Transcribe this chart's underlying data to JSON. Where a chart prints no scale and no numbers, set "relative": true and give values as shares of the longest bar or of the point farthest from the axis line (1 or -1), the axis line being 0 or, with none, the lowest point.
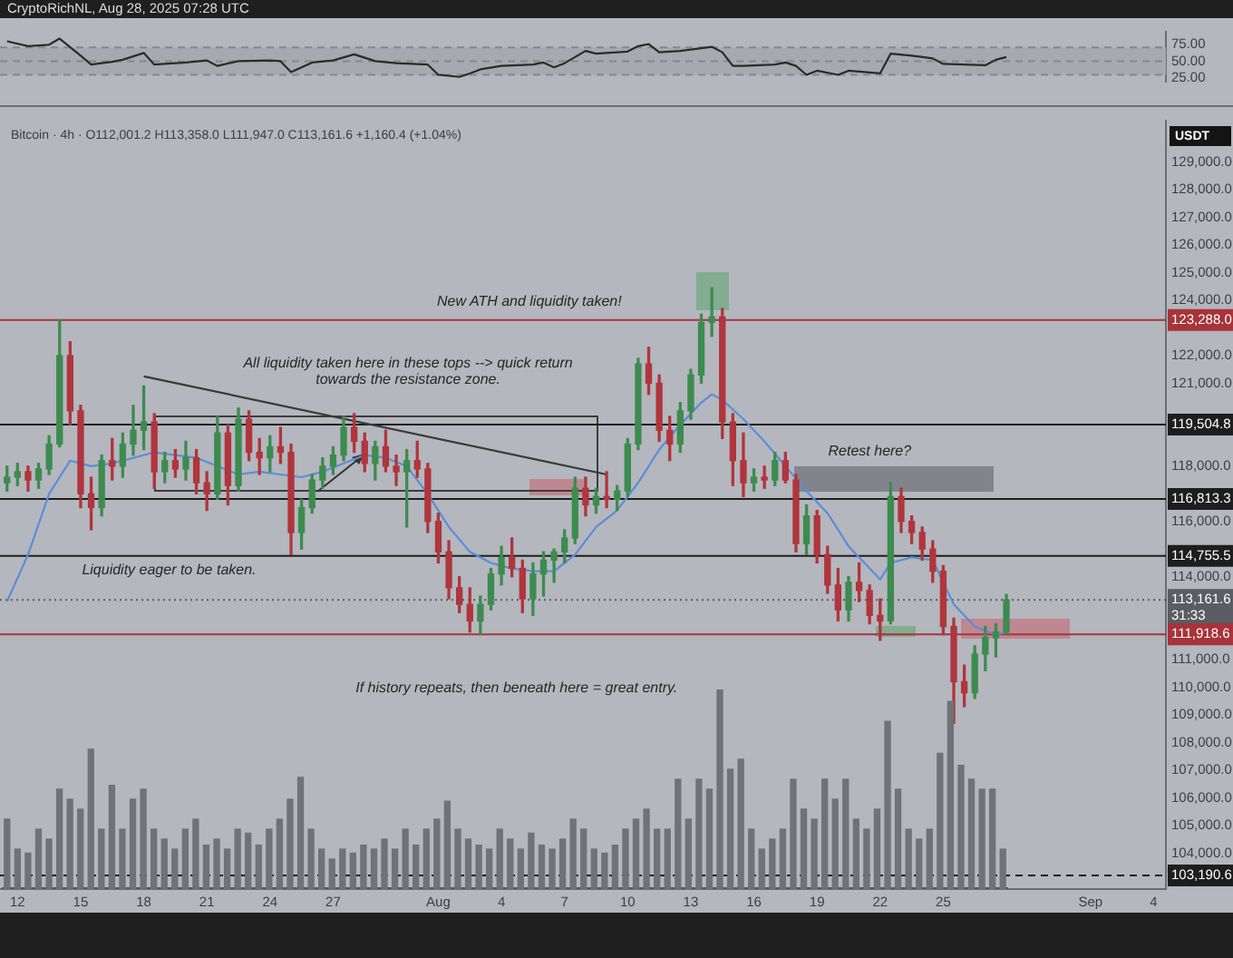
{
  "chart_data": [
    {
      "type": "line",
      "title": "CryptoRichNL, Aug 28, 2025 07:28 UTC",
      "x": [
        "2025-07-11T12:00",
        "2025-07-12T12:00",
        "2025-07-13T12:00",
        "2025-07-14T00:00",
        "2025-07-15T00:00",
        "2025-07-15T12:00",
        "2025-07-16T00:00",
        "2025-07-16T12:00",
        "2025-07-17T00:00",
        "2025-07-18T00:00",
        "2025-07-18T12:00",
        "2025-07-20T00:00",
        "2025-07-21T00:00",
        "2025-07-21T12:00",
        "2025-07-22T12:00",
        "2025-07-24T00:00",
        "2025-07-24T12:00",
        "2025-07-25T00:00",
        "2025-07-26T00:00",
        "2025-07-27T00:00",
        "2025-07-28T00:00",
        "2025-07-29T00:00",
        "2025-07-30T00:00",
        "2025-07-31T12:00",
        "2025-08-01T00:00",
        "2025-08-02T00:00",
        "2025-08-02T12:00",
        "2025-08-03T00:00",
        "2025-08-04T00:00",
        "2025-08-05T12:00",
        "2025-08-06T00:00",
        "2025-08-06T12:00",
        "2025-08-07T00:00",
        "2025-08-08T00:00",
        "2025-08-08T12:00",
        "2025-08-10T00:00",
        "2025-08-10T12:00",
        "2025-08-11T00:00",
        "2025-08-11T12:00",
        "2025-08-12T12:00",
        "2025-08-13T00:00",
        "2025-08-14T00:00",
        "2025-08-14T12:00",
        "2025-08-15T00:00",
        "2025-08-15T12:00",
        "2025-08-17T00:00",
        "2025-08-17T12:00",
        "2025-08-18T00:00",
        "2025-08-18T12:00",
        "2025-08-19T00:00",
        "2025-08-20T00:00",
        "2025-08-20T12:00",
        "2025-08-22T00:00",
        "2025-08-22T12:00",
        "2025-08-23T12:00",
        "2025-08-24T12:00",
        "2025-08-25T00:00",
        "2025-08-26T00:00",
        "2025-08-27T00:00",
        "2025-08-27T12:00",
        "2025-08-28T00:00"
      ],
      "values": [
        79,
        72,
        74,
        83,
        58,
        45,
        47,
        49,
        52,
        62,
        45,
        48,
        51,
        43,
        50,
        51,
        50,
        34,
        48,
        51,
        60,
        50,
        47,
        45,
        30,
        27,
        32,
        38,
        43,
        45,
        48,
        41,
        47,
        65,
        61,
        64,
        72,
        75,
        63,
        65,
        67,
        71,
        63,
        43,
        43,
        45,
        48,
        43,
        30,
        36,
        30,
        36,
        32,
        61,
        58,
        54,
        46,
        45,
        44,
        52,
        56
      ],
      "color": "#2b2b2b",
      "xlim": [
        "2025-07-11T04:00",
        "2025-09-04T14:00"
      ],
      "ylim": [
        20,
        93
      ],
      "yticks": [
        {
          "value": 25,
          "label": "25.00"
        },
        {
          "value": 50,
          "label": "50.00"
        },
        {
          "value": 75,
          "label": "75.00"
        }
      ],
      "tick_labels": "y",
      "bands": [
        {
          "axis": "y",
          "from": 30,
          "to": 70,
          "color": "#a6a9b0"
        }
      ],
      "ref_lines": [
        {
          "axis": "y",
          "value": 70,
          "line_style": "dashed",
          "color": "#85888f"
        },
        {
          "axis": "y",
          "value": 50,
          "line_style": "dashed",
          "color": "#85888f"
        },
        {
          "axis": "y",
          "value": 30,
          "line_style": "dashed",
          "color": "#85888f"
        }
      ]
    },
    {
      "type": "candlestick",
      "subtitle": "Bitcoin · 4h · O112,001.2 H113,358.0 L111,947.0 C113,161.6 +1,160.4 (+1.04%)",
      "ylabel": "USDT",
      "x": [
        "2025-07-11T12:00",
        "2025-07-12T00:00",
        "2025-07-12T12:00",
        "2025-07-13T00:00",
        "2025-07-13T12:00",
        "2025-07-14T00:00",
        "2025-07-14T12:00",
        "2025-07-15T00:00",
        "2025-07-15T12:00",
        "2025-07-16T00:00",
        "2025-07-16T12:00",
        "2025-07-17T00:00",
        "2025-07-17T12:00",
        "2025-07-18T00:00",
        "2025-07-18T12:00",
        "2025-07-19T00:00",
        "2025-07-19T12:00",
        "2025-07-20T00:00",
        "2025-07-20T12:00",
        "2025-07-21T00:00",
        "2025-07-21T12:00",
        "2025-07-22T00:00",
        "2025-07-22T12:00",
        "2025-07-23T00:00",
        "2025-07-23T12:00",
        "2025-07-24T00:00",
        "2025-07-24T12:00",
        "2025-07-25T00:00",
        "2025-07-25T12:00",
        "2025-07-26T00:00",
        "2025-07-26T12:00",
        "2025-07-27T00:00",
        "2025-07-27T12:00",
        "2025-07-28T00:00",
        "2025-07-28T12:00",
        "2025-07-29T00:00",
        "2025-07-29T12:00",
        "2025-07-30T00:00",
        "2025-07-30T12:00",
        "2025-07-31T00:00",
        "2025-07-31T12:00",
        "2025-08-01T00:00",
        "2025-08-01T12:00",
        "2025-08-02T00:00",
        "2025-08-02T12:00",
        "2025-08-03T00:00",
        "2025-08-03T12:00",
        "2025-08-04T00:00",
        "2025-08-04T12:00",
        "2025-08-05T00:00",
        "2025-08-05T12:00",
        "2025-08-06T00:00",
        "2025-08-06T12:00",
        "2025-08-07T00:00",
        "2025-08-07T12:00",
        "2025-08-08T00:00",
        "2025-08-08T12:00",
        "2025-08-09T00:00",
        "2025-08-09T12:00",
        "2025-08-10T00:00",
        "2025-08-10T12:00",
        "2025-08-11T00:00",
        "2025-08-11T12:00",
        "2025-08-12T00:00",
        "2025-08-12T12:00",
        "2025-08-13T00:00",
        "2025-08-13T12:00",
        "2025-08-14T00:00",
        "2025-08-14T12:00",
        "2025-08-15T00:00",
        "2025-08-15T12:00",
        "2025-08-16T00:00",
        "2025-08-16T12:00",
        "2025-08-17T00:00",
        "2025-08-17T12:00",
        "2025-08-18T00:00",
        "2025-08-18T12:00",
        "2025-08-19T00:00",
        "2025-08-19T12:00",
        "2025-08-20T00:00",
        "2025-08-20T12:00",
        "2025-08-21T00:00",
        "2025-08-21T12:00",
        "2025-08-22T00:00",
        "2025-08-22T12:00",
        "2025-08-23T00:00",
        "2025-08-23T12:00",
        "2025-08-24T00:00",
        "2025-08-24T12:00",
        "2025-08-25T00:00",
        "2025-08-25T12:00",
        "2025-08-26T00:00",
        "2025-08-26T12:00",
        "2025-08-27T00:00",
        "2025-08-27T12:00",
        "2025-08-28T00:00"
      ],
      "ohlc": [
        [
          117400,
          118000,
          117100,
          117600
        ],
        [
          117600,
          118100,
          117300,
          117800
        ],
        [
          117800,
          118000,
          117100,
          117500
        ],
        [
          117500,
          118100,
          117200,
          117900
        ],
        [
          117900,
          119100,
          117700,
          118800
        ],
        [
          118800,
          123288,
          118700,
          122000
        ],
        [
          122000,
          122500,
          119500,
          120000
        ],
        [
          120000,
          120200,
          116500,
          117000
        ],
        [
          117000,
          117600,
          115700,
          116500
        ],
        [
          116500,
          118400,
          116200,
          118200
        ],
        [
          118200,
          119000,
          117500,
          118000
        ],
        [
          118000,
          119200,
          117600,
          118800
        ],
        [
          118800,
          120200,
          118400,
          119300
        ],
        [
          119300,
          120900,
          118600,
          119600
        ],
        [
          119600,
          119900,
          117200,
          117800
        ],
        [
          117800,
          118500,
          117400,
          118200
        ],
        [
          118200,
          118600,
          117600,
          117900
        ],
        [
          117900,
          118900,
          117500,
          118300
        ],
        [
          118300,
          118600,
          117000,
          117400
        ],
        [
          117400,
          117800,
          116400,
          117000
        ],
        [
          117000,
          119800,
          116800,
          119200
        ],
        [
          119200,
          119500,
          116600,
          117300
        ],
        [
          117300,
          120100,
          117100,
          119700
        ],
        [
          119700,
          120000,
          118200,
          118500
        ],
        [
          118500,
          119000,
          117700,
          118300
        ],
        [
          118300,
          119100,
          117800,
          118700
        ],
        [
          118700,
          119400,
          118100,
          118500
        ],
        [
          118500,
          118800,
          114800,
          115600
        ],
        [
          115600,
          116800,
          115000,
          116500
        ],
        [
          116500,
          117700,
          116300,
          117500
        ],
        [
          117500,
          118300,
          117200,
          118000
        ],
        [
          118000,
          118700,
          117700,
          118400
        ],
        [
          118400,
          119800,
          118200,
          119400
        ],
        [
          119400,
          119900,
          118500,
          118900
        ],
        [
          118900,
          119200,
          117800,
          118100
        ],
        [
          118100,
          118900,
          117500,
          118700
        ],
        [
          118700,
          119300,
          117800,
          118000
        ],
        [
          118000,
          118400,
          117300,
          117800
        ],
        [
          117800,
          118600,
          115800,
          118200
        ],
        [
          118200,
          118900,
          117600,
          117900
        ],
        [
          117900,
          118100,
          115600,
          116000
        ],
        [
          116000,
          116300,
          114500,
          114900
        ],
        [
          114900,
          115300,
          113200,
          113600
        ],
        [
          113600,
          114000,
          112700,
          113000
        ],
        [
          113000,
          113600,
          112000,
          112400
        ],
        [
          112400,
          113300,
          111900,
          113000
        ],
        [
          113000,
          114300,
          112800,
          114100
        ],
        [
          114100,
          115100,
          113700,
          114700
        ],
        [
          114700,
          115400,
          114000,
          114300
        ],
        [
          114300,
          114600,
          112700,
          113200
        ],
        [
          113200,
          114500,
          112600,
          114100
        ],
        [
          114100,
          114900,
          113300,
          114600
        ],
        [
          114600,
          115000,
          113800,
          114900
        ],
        [
          114900,
          115700,
          114500,
          115400
        ],
        [
          115400,
          117600,
          115200,
          117200
        ],
        [
          117200,
          117600,
          116200,
          116600
        ],
        [
          116600,
          117200,
          116300,
          116900
        ],
        [
          116900,
          117800,
          116500,
          116800
        ],
        [
          116800,
          117300,
          116400,
          117100
        ],
        [
          117100,
          119000,
          116900,
          118800
        ],
        [
          118800,
          121900,
          118600,
          121700
        ],
        [
          121700,
          122300,
          120600,
          121000
        ],
        [
          121000,
          121300,
          118900,
          119300
        ],
        [
          119300,
          119800,
          118200,
          118800
        ],
        [
          118800,
          120300,
          118500,
          120000
        ],
        [
          120000,
          121500,
          119700,
          121300
        ],
        [
          121300,
          123500,
          121000,
          123200
        ],
        [
          123200,
          124450,
          122700,
          123400
        ],
        [
          123400,
          123700,
          119000,
          119600
        ],
        [
          119600,
          119900,
          117300,
          118200
        ],
        [
          118200,
          119200,
          116900,
          117400
        ],
        [
          117400,
          117900,
          117100,
          117600
        ],
        [
          117600,
          118000,
          117200,
          117500
        ],
        [
          117500,
          118500,
          117300,
          118200
        ],
        [
          118200,
          118500,
          117400,
          117500
        ],
        [
          117500,
          117700,
          114900,
          115200
        ],
        [
          115200,
          116600,
          114800,
          116200
        ],
        [
          116200,
          116400,
          114500,
          114800
        ],
        [
          114800,
          115100,
          113400,
          113700
        ],
        [
          113700,
          114300,
          112400,
          112800
        ],
        [
          112800,
          114000,
          112400,
          113800
        ],
        [
          113800,
          114500,
          113100,
          113500
        ],
        [
          113500,
          113700,
          112300,
          112600
        ],
        [
          112600,
          113200,
          111700,
          112400
        ],
        [
          112400,
          117400,
          112300,
          116900
        ],
        [
          116900,
          117200,
          115600,
          116000
        ],
        [
          116000,
          116200,
          115200,
          115600
        ],
        [
          115600,
          115800,
          114600,
          115000
        ],
        [
          115000,
          115300,
          113800,
          114200
        ],
        [
          114200,
          114400,
          111900,
          112200
        ],
        [
          112200,
          112500,
          108700,
          110200
        ],
        [
          110200,
          110800,
          109300,
          109800
        ],
        [
          109800,
          111500,
          109600,
          111200
        ],
        [
          111200,
          112200,
          110600,
          111800
        ],
        [
          111800,
          112300,
          111100,
          112001.2
        ],
        [
          112001.2,
          113358.0,
          111947.0,
          113161.6
        ]
      ],
      "colors": [
        "#3d8b4f",
        "#3d8b4f",
        "#b0353c",
        "#3d8b4f",
        "#3d8b4f",
        "#3d8b4f",
        "#b0353c",
        "#b0353c",
        "#b0353c",
        "#3d8b4f",
        "#b0353c",
        "#3d8b4f",
        "#3d8b4f",
        "#3d8b4f",
        "#b0353c",
        "#3d8b4f",
        "#b0353c",
        "#3d8b4f",
        "#b0353c",
        "#b0353c",
        "#3d8b4f",
        "#b0353c",
        "#3d8b4f",
        "#b0353c",
        "#b0353c",
        "#3d8b4f",
        "#b0353c",
        "#b0353c",
        "#3d8b4f",
        "#3d8b4f",
        "#3d8b4f",
        "#3d8b4f",
        "#3d8b4f",
        "#b0353c",
        "#b0353c",
        "#3d8b4f",
        "#b0353c",
        "#b0353c",
        "#3d8b4f",
        "#b0353c",
        "#b0353c",
        "#b0353c",
        "#b0353c",
        "#b0353c",
        "#b0353c",
        "#3d8b4f",
        "#3d8b4f",
        "#3d8b4f",
        "#b0353c",
        "#b0353c",
        "#3d8b4f",
        "#3d8b4f",
        "#3d8b4f",
        "#3d8b4f",
        "#3d8b4f",
        "#b0353c",
        "#3d8b4f",
        "#b0353c",
        "#3d8b4f",
        "#3d8b4f",
        "#3d8b4f",
        "#b0353c",
        "#b0353c",
        "#b0353c",
        "#3d8b4f",
        "#3d8b4f",
        "#3d8b4f",
        "#3d8b4f",
        "#b0353c",
        "#b0353c",
        "#b0353c",
        "#3d8b4f",
        "#b0353c",
        "#3d8b4f",
        "#b0353c",
        "#b0353c",
        "#3d8b4f",
        "#b0353c",
        "#b0353c",
        "#b0353c",
        "#3d8b4f",
        "#b0353c",
        "#b0353c",
        "#b0353c",
        "#3d8b4f",
        "#b0353c",
        "#b0353c",
        "#b0353c",
        "#b0353c",
        "#b0353c",
        "#b0353c",
        "#b0353c",
        "#3d8b4f",
        "#3d8b4f",
        "#3d8b4f",
        "#3d8b4f"
      ],
      "series": [
        {
          "type": "line",
          "color": "#5b8dd9",
          "x": [
            "2025-07-11T12:00",
            "2025-07-12T12:00",
            "2025-07-13T12:00",
            "2025-07-14T12:00",
            "2025-07-15T12:00",
            "2025-07-16T12:00",
            "2025-07-17T12:00",
            "2025-07-18T12:00",
            "2025-07-19T12:00",
            "2025-07-20T12:00",
            "2025-07-21T12:00",
            "2025-07-22T12:00",
            "2025-07-23T12:00",
            "2025-07-24T12:00",
            "2025-07-25T12:00",
            "2025-07-26T12:00",
            "2025-07-27T12:00",
            "2025-07-28T12:00",
            "2025-07-29T12:00",
            "2025-07-30T12:00",
            "2025-07-31T12:00",
            "2025-08-01T12:00",
            "2025-08-02T12:00",
            "2025-08-03T12:00",
            "2025-08-04T12:00",
            "2025-08-05T12:00",
            "2025-08-06T12:00",
            "2025-08-07T12:00",
            "2025-08-08T12:00",
            "2025-08-09T12:00",
            "2025-08-10T12:00",
            "2025-08-11T12:00",
            "2025-08-12T12:00",
            "2025-08-13T12:00",
            "2025-08-14T00:00",
            "2025-08-14T12:00",
            "2025-08-15T12:00",
            "2025-08-16T12:00",
            "2025-08-17T12:00",
            "2025-08-18T12:00",
            "2025-08-19T12:00",
            "2025-08-20T12:00",
            "2025-08-21T12:00",
            "2025-08-22T00:00",
            "2025-08-22T12:00",
            "2025-08-23T12:00",
            "2025-08-24T12:00",
            "2025-08-25T12:00",
            "2025-08-26T12:00",
            "2025-08-27T12:00",
            "2025-08-28T00:00"
          ],
          "values": [
            113100,
            114800,
            117000,
            118200,
            118000,
            118100,
            118300,
            118500,
            118400,
            118300,
            118000,
            117700,
            117800,
            117700,
            117600,
            117800,
            118100,
            118400,
            118300,
            118000,
            117000,
            115800,
            114900,
            114500,
            114300,
            114200,
            114200,
            114800,
            115800,
            116400,
            117400,
            118600,
            119500,
            120300,
            120600,
            120400,
            119700,
            118900,
            118000,
            117100,
            116300,
            115100,
            114300,
            113900,
            114500,
            114700,
            114600,
            113000,
            112200,
            111900,
            112000
          ]
        },
        {
          "type": "line",
          "color": "#3a3a3a",
          "x": [
            "2025-07-18T00:00",
            "2025-08-09T00:00"
          ],
          "values": [
            121250,
            117700
          ]
        }
      ],
      "xlim": [
        "2025-07-11T04:00",
        "2025-09-04T14:00"
      ],
      "xticks": [
        {
          "value": "2025-07-12",
          "label": "12"
        },
        {
          "value": "2025-07-15",
          "label": "15"
        },
        {
          "value": "2025-07-18",
          "label": "18"
        },
        {
          "value": "2025-07-21",
          "label": "21"
        },
        {
          "value": "2025-07-24",
          "label": "24"
        },
        {
          "value": "2025-07-27",
          "label": "27"
        },
        {
          "value": "2025-08-01",
          "label": "Aug"
        },
        {
          "value": "2025-08-04",
          "label": "4"
        },
        {
          "value": "2025-08-07",
          "label": "7"
        },
        {
          "value": "2025-08-10",
          "label": "10"
        },
        {
          "value": "2025-08-13",
          "label": "13"
        },
        {
          "value": "2025-08-16",
          "label": "16"
        },
        {
          "value": "2025-08-19",
          "label": "19"
        },
        {
          "value": "2025-08-22",
          "label": "22"
        },
        {
          "value": "2025-08-25",
          "label": "25"
        },
        {
          "value": "2025-09-01",
          "label": "Sep"
        },
        {
          "value": "2025-09-04",
          "label": "4"
        }
      ],
      "ylim": [
        102700,
        130500
      ],
      "yticks": [
        {
          "value": 129000,
          "label": "129,000.0"
        },
        {
          "value": 128000,
          "label": "128,000.0"
        },
        {
          "value": 127000,
          "label": "127,000.0"
        },
        {
          "value": 126000,
          "label": "126,000.0"
        },
        {
          "value": 125000,
          "label": "125,000.0"
        },
        {
          "value": 124000,
          "label": "124,000.0"
        },
        {
          "value": 122000,
          "label": "122,000.0"
        },
        {
          "value": 121000,
          "label": "121,000.0"
        },
        {
          "value": 118000,
          "label": "118,000.0"
        },
        {
          "value": 116000,
          "label": "116,000.0"
        },
        {
          "value": 114000,
          "label": "114,000.0"
        },
        {
          "value": 111000,
          "label": "111,000.0"
        },
        {
          "value": 110000,
          "label": "110,000.0"
        },
        {
          "value": 109000,
          "label": "109,000.0"
        },
        {
          "value": 108000,
          "label": "108,000.0"
        },
        {
          "value": 107000,
          "label": "107,000.0"
        },
        {
          "value": 106000,
          "label": "106,000.0"
        },
        {
          "value": 105000,
          "label": "105,000.0"
        },
        {
          "value": 104000,
          "label": "104,000.0"
        }
      ],
      "ref_lines": [
        {
          "axis": "y",
          "value": 123288.0,
          "label": "123,288.0",
          "color": "#a8333a"
        },
        {
          "axis": "y",
          "value": 119504.8,
          "label": "119,504.8",
          "color": "#1e1e1e"
        },
        {
          "axis": "y",
          "value": 116813.3,
          "label": "116,813.3",
          "color": "#1e1e1e"
        },
        {
          "axis": "y",
          "value": 114755.5,
          "label": "114,755.5",
          "color": "#1e1e1e"
        },
        {
          "axis": "y",
          "value": 113161.6,
          "label": "113,161.6\n31:33",
          "color": "#5a5d63",
          "line_style": "dotted"
        },
        {
          "axis": "y",
          "value": 111918.6,
          "label": "111,918.6",
          "color": "#a8333a"
        },
        {
          "axis": "y",
          "value": 103190.6,
          "label": "103,190.6",
          "color": "#1e1e1e",
          "line_style": "dashed"
        }
      ],
      "annotations": [
        "New ATH and liquidity taken!",
        "All liquidity taken here in these tops --> quick return towards the resistance zone.",
        "Retest here?",
        "Liquidity eager to be taken.",
        "If history repeats, then beneath here = great entry."
      ]
    },
    {
      "type": "bar",
      "relative": true,
      "color": "#6f7279",
      "tick_labels": false,
      "categories": [
        null,
        null,
        null,
        null,
        null,
        null,
        null,
        null,
        null,
        null,
        null,
        null,
        null,
        null,
        null,
        null,
        null,
        null,
        null,
        null,
        null,
        null,
        null,
        null,
        null,
        null,
        null,
        null,
        null,
        null,
        null,
        null,
        null,
        null,
        null,
        null,
        null,
        null,
        null,
        null,
        null,
        null,
        null,
        null,
        null,
        null,
        null,
        null,
        null,
        null,
        null,
        null,
        null,
        null,
        null,
        null,
        null,
        null,
        null,
        null,
        null,
        null,
        null,
        null,
        null,
        null,
        null,
        null,
        null,
        null,
        null,
        null,
        null,
        null,
        null,
        null,
        null,
        null,
        null,
        null,
        null,
        null,
        null,
        null,
        null,
        null,
        null,
        null,
        null,
        null,
        null,
        null,
        null,
        null,
        null,
        null
      ],
      "values": [
        0.35,
        0.2,
        0.18,
        0.3,
        0.25,
        0.5,
        0.45,
        0.4,
        0.7,
        0.3,
        0.52,
        0.3,
        0.45,
        0.5,
        0.3,
        0.25,
        0.2,
        0.3,
        0.35,
        0.22,
        0.25,
        0.2,
        0.3,
        0.28,
        0.22,
        0.3,
        0.35,
        0.45,
        0.56,
        0.3,
        0.2,
        0.15,
        0.2,
        0.18,
        0.22,
        0.2,
        0.25,
        0.2,
        0.3,
        0.22,
        0.3,
        0.35,
        0.44,
        0.3,
        0.25,
        0.22,
        0.2,
        0.3,
        0.25,
        0.2,
        0.28,
        0.22,
        0.2,
        0.25,
        0.35,
        0.3,
        0.2,
        0.18,
        0.22,
        0.3,
        0.35,
        0.4,
        0.3,
        0.3,
        0.55,
        0.35,
        0.55,
        0.5,
        1,
        0.6,
        0.65,
        0.3,
        0.2,
        0.25,
        0.3,
        0.55,
        0.4,
        0.35,
        0.55,
        0.45,
        0.55,
        0.35,
        0.3,
        0.4,
        0.84,
        0.5,
        0.3,
        0.25,
        0.3,
        0.68,
        0.94,
        0.62,
        0.55,
        0.5,
        0.5,
        0.2
      ]
    }
  ]
}
